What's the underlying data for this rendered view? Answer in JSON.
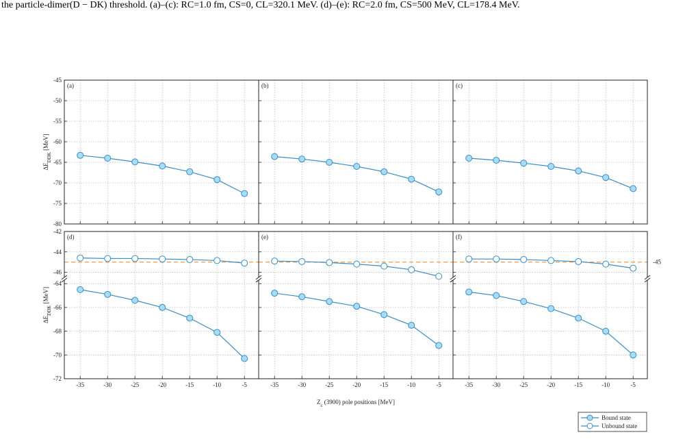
{
  "caption": "the particle-dimer(D − DK) threshold. (a)–(c): RC=1.0 fm, CS=0, CL=320.1 MeV. (d)–(e): RC=2.0 fm, CS=500 MeV, CL=178.4 MeV.",
  "chart_data": [
    {
      "type": "line",
      "label": "(a)",
      "y_label": {
        "main": "ΔE",
        "sub": "DDK",
        "unit": " [MeV]"
      },
      "x": [
        -35,
        -30,
        -25,
        -20,
        -15,
        -10,
        -5
      ],
      "xlim": [
        -37.9,
        -2.4
      ],
      "xticks": [
        -35,
        -30,
        -25,
        -20,
        -15,
        -10,
        -5
      ],
      "ylim": [
        -80,
        -45
      ],
      "yticks": [
        -80,
        -75,
        -70,
        -65,
        -60,
        -55,
        -50,
        -45
      ],
      "grid": true,
      "series": [
        {
          "name": "Bound state",
          "color": "#3a8cc4",
          "marker_fill": "#a6dcf5",
          "values": [
            -63.3,
            -64.0,
            -64.9,
            -65.9,
            -67.3,
            -69.2,
            -72.6
          ]
        }
      ]
    },
    {
      "type": "line",
      "label": "(b)",
      "x": [
        -35,
        -30,
        -25,
        -20,
        -15,
        -10,
        -5
      ],
      "xlim": [
        -37.9,
        -2.4
      ],
      "xticks": [
        -35,
        -30,
        -25,
        -20,
        -15,
        -10,
        -5
      ],
      "ylim": [
        -80,
        -45
      ],
      "yticks": [
        -80,
        -75,
        -70,
        -65,
        -60,
        -55,
        -50,
        -45
      ],
      "grid": true,
      "series": [
        {
          "name": "Bound state",
          "color": "#3a8cc4",
          "marker_fill": "#a6dcf5",
          "values": [
            -63.6,
            -64.2,
            -65.0,
            -66.0,
            -67.3,
            -69.1,
            -72.2
          ]
        }
      ]
    },
    {
      "type": "line",
      "label": "(c)",
      "x": [
        -35,
        -30,
        -25,
        -20,
        -15,
        -10,
        -5
      ],
      "xlim": [
        -37.9,
        -2.4
      ],
      "xticks": [
        -35,
        -30,
        -25,
        -20,
        -15,
        -10,
        -5
      ],
      "ylim": [
        -80,
        -45
      ],
      "yticks": [
        -80,
        -75,
        -70,
        -65,
        -60,
        -55,
        -50,
        -45
      ],
      "grid": true,
      "series": [
        {
          "name": "Bound state",
          "color": "#3a8cc4",
          "marker_fill": "#a6dcf5",
          "values": [
            -64.0,
            -64.5,
            -65.2,
            -66.0,
            -67.1,
            -68.7,
            -71.4
          ]
        }
      ]
    },
    {
      "type": "line",
      "label": "(d)",
      "y_label": {
        "main": "ΔE",
        "sub": "DDK",
        "unit": " [MeV]"
      },
      "x": [
        -35,
        -30,
        -25,
        -20,
        -15,
        -10,
        -5
      ],
      "xlim": [
        -37.9,
        -2.4
      ],
      "xticks": [
        -35,
        -30,
        -25,
        -20,
        -15,
        -10,
        -5
      ],
      "segments": [
        {
          "ylim": [
            -46.5,
            -42
          ],
          "yticks": [
            -46,
            -44,
            -42
          ]
        },
        {
          "ylim": [
            -72,
            -63.7
          ],
          "yticks": [
            -72,
            -70,
            -68,
            -66,
            -64
          ]
        }
      ],
      "grid": true,
      "reference_line": {
        "value": -45,
        "color": "#f0a35e"
      },
      "series": [
        {
          "name": "Bound state",
          "segment": 1,
          "color": "#3a8cc4",
          "marker_fill": "#a6dcf5",
          "values": [
            -64.5,
            -64.9,
            -65.4,
            -66.0,
            -66.9,
            -68.1,
            -70.3
          ]
        },
        {
          "name": "Unbound state",
          "segment": 0,
          "color": "#3a8cc4",
          "marker_fill": "#ffffff",
          "values": [
            -44.6,
            -44.65,
            -44.65,
            -44.7,
            -44.75,
            -44.85,
            -45.1
          ]
        }
      ]
    },
    {
      "type": "line",
      "label": "(e)",
      "x_label": {
        "main": "Z",
        "sub": "c",
        "unit": " (3900) pole positions [MeV]"
      },
      "x": [
        -35,
        -30,
        -25,
        -20,
        -15,
        -10,
        -5
      ],
      "xlim": [
        -37.9,
        -2.4
      ],
      "xticks": [
        -35,
        -30,
        -25,
        -20,
        -15,
        -10,
        -5
      ],
      "segments": [
        {
          "ylim": [
            -46.5,
            -42
          ],
          "yticks": [
            -46,
            -44,
            -42
          ]
        },
        {
          "ylim": [
            -72,
            -63.7
          ],
          "yticks": [
            -72,
            -70,
            -68,
            -66,
            -64
          ]
        }
      ],
      "grid": true,
      "reference_line": {
        "value": -45,
        "color": "#f0a35e"
      },
      "series": [
        {
          "name": "Bound state",
          "segment": 1,
          "color": "#3a8cc4",
          "marker_fill": "#a6dcf5",
          "values": [
            -64.8,
            -65.1,
            -65.5,
            -65.9,
            -66.6,
            -67.5,
            -69.2
          ]
        },
        {
          "name": "Unbound state",
          "segment": 0,
          "color": "#3a8cc4",
          "marker_fill": "#ffffff",
          "values": [
            -44.9,
            -44.95,
            -45.05,
            -45.2,
            -45.4,
            -45.75,
            -46.4
          ]
        }
      ]
    },
    {
      "type": "line",
      "label": "(f)",
      "x": [
        -35,
        -30,
        -25,
        -20,
        -15,
        -10,
        -5
      ],
      "xlim": [
        -37.9,
        -2.4
      ],
      "xticks": [
        -35,
        -30,
        -25,
        -20,
        -15,
        -10,
        -5
      ],
      "segments": [
        {
          "ylim": [
            -46.5,
            -42
          ],
          "yticks": [
            -46,
            -44,
            -42
          ]
        },
        {
          "ylim": [
            -72,
            -63.7
          ],
          "yticks": [
            -72,
            -70,
            -68,
            -66,
            -64
          ]
        }
      ],
      "grid": true,
      "reference_line": {
        "value": -45,
        "color": "#f0a35e"
      },
      "legend": "lower right",
      "series": [
        {
          "name": "Bound state",
          "segment": 1,
          "color": "#3a8cc4",
          "marker_fill": "#a6dcf5",
          "values": [
            -64.7,
            -65.0,
            -65.5,
            -66.1,
            -66.9,
            -68.0,
            -70.0
          ]
        },
        {
          "name": "Unbound state",
          "segment": 0,
          "color": "#3a8cc4",
          "marker_fill": "#ffffff",
          "values": [
            -44.7,
            -44.7,
            -44.75,
            -44.85,
            -44.95,
            -45.2,
            -45.6
          ]
        }
      ]
    }
  ]
}
